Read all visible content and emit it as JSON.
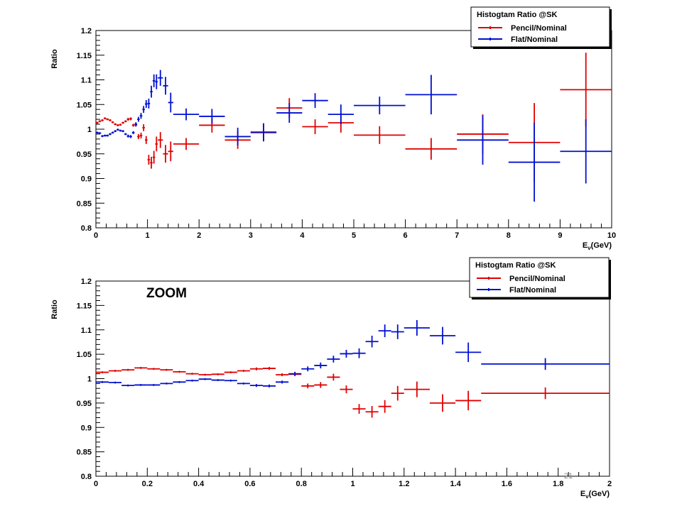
{
  "slide": {
    "page_number": "21"
  },
  "chart_data": [
    {
      "type": "errorbar",
      "title": "",
      "xlabel": "E_ν(GeV)",
      "ylabel": "Ratio",
      "xlim": [
        0,
        10
      ],
      "ylim": [
        0.8,
        1.2
      ],
      "x_ticks": [
        0,
        1,
        2,
        3,
        4,
        5,
        6,
        7,
        8,
        9,
        10
      ],
      "y_ticks": [
        0.8,
        0.85,
        0.9,
        0.95,
        1,
        1.05,
        1.1,
        1.15,
        1.2
      ],
      "grid": false,
      "legend": {
        "title": "Histogtam Ratio @SK",
        "position": "top-right",
        "entries": [
          "Pencil/Nominal",
          "Flat/Nominal"
        ]
      },
      "annotation": "",
      "series": [
        {
          "name": "Pencil/Nominal",
          "color": "#e00000",
          "x": [
            0.025,
            0.075,
            0.125,
            0.175,
            0.225,
            0.275,
            0.325,
            0.375,
            0.425,
            0.475,
            0.525,
            0.575,
            0.625,
            0.675,
            0.725,
            0.775,
            0.825,
            0.875,
            0.925,
            0.975,
            1.025,
            1.075,
            1.125,
            1.175,
            1.25,
            1.35,
            1.45,
            1.75,
            2.25,
            2.75,
            3.25,
            3.75,
            4.25,
            4.75,
            5.5,
            6.5,
            7.5,
            8.5,
            9.5
          ],
          "y": [
            1.013,
            1.016,
            1.018,
            1.022,
            1.02,
            1.018,
            1.014,
            1.01,
            1.008,
            1.009,
            1.013,
            1.016,
            1.02,
            1.021,
            1.008,
            1.009,
            0.985,
            0.987,
            1.003,
            0.978,
            0.938,
            0.932,
            0.943,
            0.97,
            0.978,
            0.95,
            0.955,
            0.97,
            1.008,
            0.978,
            0.993,
            1.043,
            1.005,
            1.013,
            0.988,
            0.96,
            0.99,
            0.973,
            1.08
          ],
          "xerr": [
            0.025,
            0.025,
            0.025,
            0.025,
            0.025,
            0.025,
            0.025,
            0.025,
            0.025,
            0.025,
            0.025,
            0.025,
            0.025,
            0.025,
            0.025,
            0.025,
            0.025,
            0.025,
            0.025,
            0.025,
            0.025,
            0.025,
            0.025,
            0.025,
            0.05,
            0.05,
            0.05,
            0.25,
            0.25,
            0.25,
            0.25,
            0.25,
            0.25,
            0.25,
            0.5,
            0.5,
            0.5,
            0.5,
            0.5
          ],
          "yerr": [
            0.002,
            0.002,
            0.002,
            0.002,
            0.002,
            0.002,
            0.002,
            0.002,
            0.002,
            0.002,
            0.002,
            0.002,
            0.003,
            0.003,
            0.003,
            0.004,
            0.005,
            0.006,
            0.007,
            0.008,
            0.01,
            0.012,
            0.013,
            0.015,
            0.016,
            0.018,
            0.02,
            0.012,
            0.015,
            0.018,
            0.018,
            0.02,
            0.015,
            0.02,
            0.018,
            0.022,
            0.04,
            0.08,
            0.075
          ]
        },
        {
          "name": "Flat/Nominal",
          "color": "#0010d0",
          "x": [
            0.025,
            0.075,
            0.125,
            0.175,
            0.225,
            0.275,
            0.325,
            0.375,
            0.425,
            0.475,
            0.525,
            0.575,
            0.625,
            0.675,
            0.725,
            0.775,
            0.825,
            0.875,
            0.925,
            0.975,
            1.025,
            1.075,
            1.125,
            1.175,
            1.25,
            1.35,
            1.45,
            1.75,
            2.25,
            2.75,
            3.25,
            3.75,
            4.25,
            4.75,
            5.5,
            6.5,
            7.5,
            8.5,
            9.5
          ],
          "y": [
            0.993,
            0.992,
            0.986,
            0.987,
            0.987,
            0.99,
            0.993,
            0.996,
            0.999,
            0.997,
            0.996,
            0.99,
            0.986,
            0.985,
            0.993,
            1.01,
            1.02,
            1.027,
            1.04,
            1.051,
            1.052,
            1.076,
            1.098,
            1.096,
            1.104,
            1.088,
            1.054,
            1.03,
            1.026,
            0.985,
            0.994,
            1.033,
            1.058,
            1.03,
            1.048,
            1.07,
            0.978,
            0.933,
            0.955
          ],
          "xerr": [
            0.025,
            0.025,
            0.025,
            0.025,
            0.025,
            0.025,
            0.025,
            0.025,
            0.025,
            0.025,
            0.025,
            0.025,
            0.025,
            0.025,
            0.025,
            0.025,
            0.025,
            0.025,
            0.025,
            0.025,
            0.025,
            0.025,
            0.025,
            0.025,
            0.05,
            0.05,
            0.05,
            0.25,
            0.25,
            0.25,
            0.25,
            0.25,
            0.25,
            0.25,
            0.5,
            0.5,
            0.5,
            0.5,
            0.5
          ],
          "yerr": [
            0.002,
            0.002,
            0.002,
            0.002,
            0.002,
            0.002,
            0.002,
            0.002,
            0.002,
            0.002,
            0.002,
            0.002,
            0.003,
            0.003,
            0.003,
            0.004,
            0.005,
            0.006,
            0.007,
            0.008,
            0.01,
            0.012,
            0.013,
            0.015,
            0.016,
            0.018,
            0.02,
            0.012,
            0.015,
            0.018,
            0.018,
            0.02,
            0.015,
            0.02,
            0.018,
            0.04,
            0.05,
            0.08,
            0.065
          ]
        }
      ]
    },
    {
      "type": "errorbar",
      "title": "",
      "xlabel": "E_ν(GeV)",
      "ylabel": "Ratio",
      "xlim": [
        0,
        2
      ],
      "ylim": [
        0.8,
        1.2
      ],
      "x_ticks": [
        0,
        0.2,
        0.4,
        0.6,
        0.8,
        1,
        1.2,
        1.4,
        1.6,
        1.8,
        2
      ],
      "y_ticks": [
        0.8,
        0.85,
        0.9,
        0.95,
        1,
        1.05,
        1.1,
        1.15,
        1.2
      ],
      "grid": false,
      "legend": {
        "title": "Histogtam Ratio @SK",
        "position": "top-right",
        "entries": [
          "Pencil/Nominal",
          "Flat/Nominal"
        ]
      },
      "annotation": "ZOOM",
      "series": [
        {
          "name": "Pencil/Nominal",
          "color": "#e00000",
          "x": [
            0.025,
            0.075,
            0.125,
            0.175,
            0.225,
            0.275,
            0.325,
            0.375,
            0.425,
            0.475,
            0.525,
            0.575,
            0.625,
            0.675,
            0.725,
            0.775,
            0.825,
            0.875,
            0.925,
            0.975,
            1.025,
            1.075,
            1.125,
            1.175,
            1.25,
            1.35,
            1.45,
            1.75
          ],
          "y": [
            1.013,
            1.016,
            1.018,
            1.022,
            1.02,
            1.018,
            1.014,
            1.01,
            1.008,
            1.009,
            1.013,
            1.016,
            1.02,
            1.021,
            1.008,
            1.009,
            0.985,
            0.987,
            1.003,
            0.978,
            0.938,
            0.932,
            0.943,
            0.97,
            0.978,
            0.95,
            0.955,
            0.97
          ],
          "xerr": [
            0.025,
            0.025,
            0.025,
            0.025,
            0.025,
            0.025,
            0.025,
            0.025,
            0.025,
            0.025,
            0.025,
            0.025,
            0.025,
            0.025,
            0.025,
            0.025,
            0.025,
            0.025,
            0.025,
            0.025,
            0.025,
            0.025,
            0.025,
            0.025,
            0.05,
            0.05,
            0.05,
            0.25
          ],
          "yerr": [
            0.002,
            0.002,
            0.002,
            0.002,
            0.002,
            0.002,
            0.002,
            0.002,
            0.002,
            0.002,
            0.002,
            0.002,
            0.003,
            0.003,
            0.003,
            0.004,
            0.005,
            0.006,
            0.007,
            0.008,
            0.01,
            0.012,
            0.013,
            0.015,
            0.016,
            0.018,
            0.02,
            0.012
          ]
        },
        {
          "name": "Flat/Nominal",
          "color": "#0010d0",
          "x": [
            0.025,
            0.075,
            0.125,
            0.175,
            0.225,
            0.275,
            0.325,
            0.375,
            0.425,
            0.475,
            0.525,
            0.575,
            0.625,
            0.675,
            0.725,
            0.775,
            0.825,
            0.875,
            0.925,
            0.975,
            1.025,
            1.075,
            1.125,
            1.175,
            1.25,
            1.35,
            1.45,
            1.75
          ],
          "y": [
            0.993,
            0.992,
            0.986,
            0.987,
            0.987,
            0.99,
            0.993,
            0.996,
            0.999,
            0.997,
            0.996,
            0.99,
            0.986,
            0.985,
            0.993,
            1.01,
            1.02,
            1.027,
            1.04,
            1.051,
            1.052,
            1.076,
            1.098,
            1.096,
            1.104,
            1.088,
            1.054,
            1.03
          ],
          "xerr": [
            0.025,
            0.025,
            0.025,
            0.025,
            0.025,
            0.025,
            0.025,
            0.025,
            0.025,
            0.025,
            0.025,
            0.025,
            0.025,
            0.025,
            0.025,
            0.025,
            0.025,
            0.025,
            0.025,
            0.025,
            0.025,
            0.025,
            0.025,
            0.025,
            0.05,
            0.05,
            0.05,
            0.25
          ],
          "yerr": [
            0.002,
            0.002,
            0.002,
            0.002,
            0.002,
            0.002,
            0.002,
            0.002,
            0.002,
            0.002,
            0.002,
            0.002,
            0.003,
            0.003,
            0.003,
            0.004,
            0.005,
            0.006,
            0.007,
            0.008,
            0.01,
            0.012,
            0.013,
            0.015,
            0.016,
            0.018,
            0.02,
            0.012
          ]
        }
      ]
    }
  ]
}
